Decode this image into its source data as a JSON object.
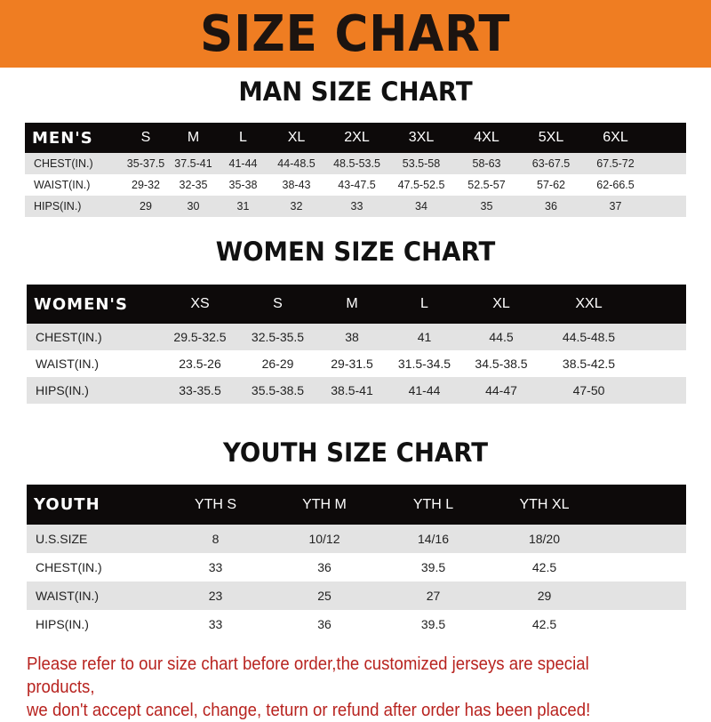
{
  "banner_title": "SIZE CHART",
  "men": {
    "title": "MAN SIZE CHART",
    "header": [
      "MEN'S",
      "S",
      "M",
      "L",
      "XL",
      "2XL",
      "3XL",
      "4XL",
      "5XL",
      "6XL"
    ],
    "rows": [
      [
        "CHEST(IN.)",
        "35-37.5",
        "37.5-41",
        "41-44",
        "44-48.5",
        "48.5-53.5",
        "53.5-58",
        "58-63",
        "63-67.5",
        "67.5-72"
      ],
      [
        "WAIST(IN.)",
        "29-32",
        "32-35",
        "35-38",
        "38-43",
        "43-47.5",
        "47.5-52.5",
        "52.5-57",
        "57-62",
        "62-66.5"
      ],
      [
        "HIPS(IN.)",
        "29",
        "30",
        "31",
        "32",
        "33",
        "34",
        "35",
        "36",
        "37"
      ]
    ]
  },
  "women": {
    "title": "WOMEN SIZE CHART",
    "header": [
      "WOMEN'S",
      "XS",
      "S",
      "M",
      "L",
      "XL",
      "XXL"
    ],
    "rows": [
      [
        "CHEST(IN.)",
        "29.5-32.5",
        "32.5-35.5",
        "38",
        "41",
        "44.5",
        "44.5-48.5"
      ],
      [
        "WAIST(IN.)",
        "23.5-26",
        "26-29",
        "29-31.5",
        "31.5-34.5",
        "34.5-38.5",
        "38.5-42.5"
      ],
      [
        "HIPS(IN.)",
        "33-35.5",
        "35.5-38.5",
        "38.5-41",
        "41-44",
        "44-47",
        "47-50"
      ]
    ]
  },
  "youth": {
    "title": "YOUTH SIZE CHART",
    "header": [
      "YOUTH",
      "YTH S",
      "YTH M",
      "YTH L",
      "YTH XL"
    ],
    "rows": [
      [
        "U.S.SIZE",
        "8",
        "10/12",
        "14/16",
        "18/20"
      ],
      [
        "CHEST(IN.)",
        "33",
        "36",
        "39.5",
        "42.5"
      ],
      [
        "WAIST(IN.)",
        "23",
        "25",
        "27",
        "29"
      ],
      [
        "HIPS(IN.)",
        "33",
        "36",
        "39.5",
        "42.5"
      ]
    ]
  },
  "note": {
    "line1": "Please refer to our size chart before order,the customized jerseys are special products,",
    "line2": "we don't accept cancel, change, teturn or refund after order has been placed!"
  },
  "colors": {
    "banner": "#ef7d22",
    "header_row": "#0d0a0a",
    "note": "#b8231f"
  }
}
